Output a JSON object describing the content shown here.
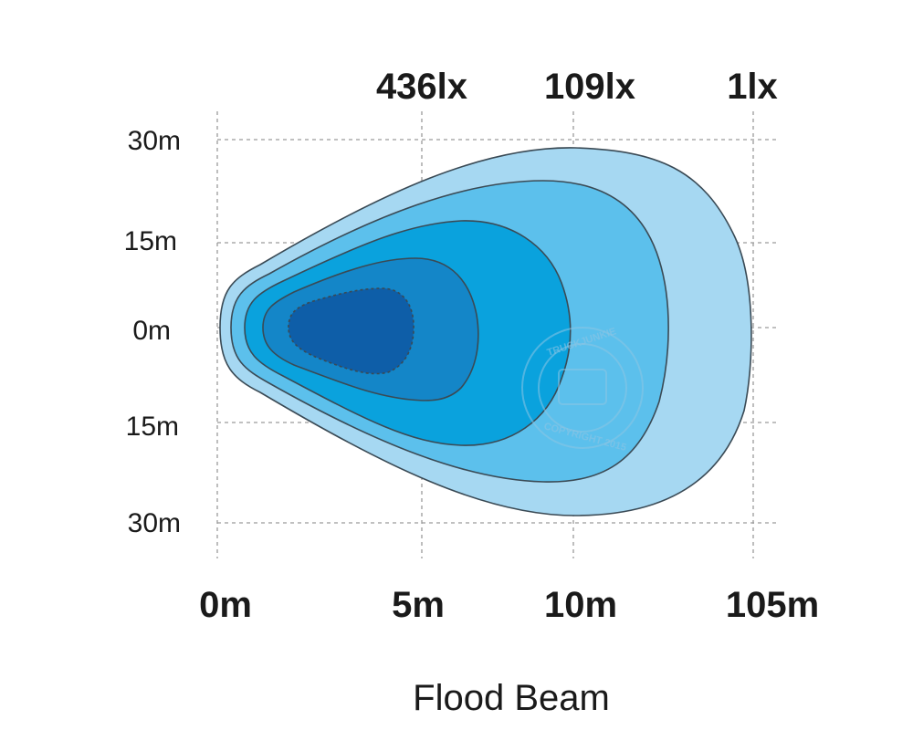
{
  "chart_data": {
    "type": "beam-pattern",
    "title": "Flood Beam",
    "y_ticks": [
      "30m",
      "15m",
      "0m",
      "15m",
      "30m"
    ],
    "x_ticks": [
      "0m",
      "5m",
      "10m",
      "105m"
    ],
    "lux_labels": [
      "436lx",
      "109lx",
      "1lx"
    ],
    "zone_colors": [
      "#a6d8f2",
      "#5cc0ec",
      "#0aa2dd",
      "#1486c8",
      "#0e5ea8"
    ],
    "grid": true
  },
  "watermark": {
    "text_top": "TRUCKJUNKIE",
    "text_bottom": "COPYRIGHT 2015"
  }
}
